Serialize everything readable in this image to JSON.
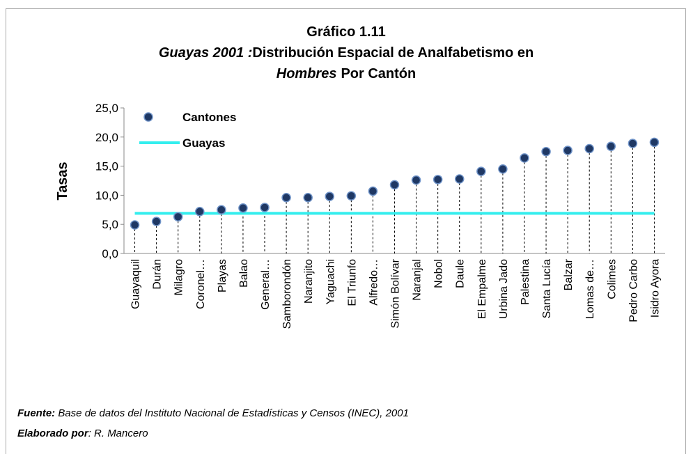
{
  "chart_data": {
    "type": "dot-drop",
    "title": "Gráfico  1.11",
    "subtitle_parts": [
      "Guayas 2001 :",
      "Distribución  Espacial de Analfabetismo en",
      "Hombres",
      "Por Cantón"
    ],
    "y_label": "Tasas",
    "categories": [
      "Guayaquil",
      "Durán",
      "Milagro",
      "Coronel…",
      "Playas",
      "Balao",
      "General…",
      "Samborondón",
      "Naranjito",
      "Yaguachi",
      "El Triunfo",
      "Alfredo…",
      "Simón Bolívar",
      "Naranjal",
      "Nobol",
      "Daule",
      "El Empalme",
      "Urbina Jado",
      "Palestina",
      "Santa Lucía",
      "Balzar",
      "Lomas de…",
      "Colimes",
      "Pedro Carbo",
      "Isidro Ayora"
    ],
    "series": [
      {
        "name": "Cantones",
        "color": "#1f3864",
        "values": [
          4.9,
          5.5,
          6.3,
          7.2,
          7.5,
          7.8,
          7.9,
          9.6,
          9.6,
          9.8,
          9.9,
          10.7,
          11.8,
          12.6,
          12.7,
          12.8,
          14.1,
          14.5,
          16.4,
          17.5,
          17.7,
          18.0,
          18.4,
          18.9,
          19.1
        ]
      },
      {
        "name": "Guayas",
        "color": "#33eeee",
        "values": [
          6.9,
          6.9,
          6.9,
          6.9,
          6.9,
          6.9,
          6.9,
          6.9,
          6.9,
          6.9,
          6.9,
          6.9,
          6.9,
          6.9,
          6.9,
          6.9,
          6.9,
          6.9,
          6.9,
          6.9,
          6.9,
          6.9,
          6.9,
          6.9,
          6.9
        ]
      }
    ],
    "ylim": [
      0,
      25
    ],
    "yticks": [
      {
        "value": 0,
        "label": "0,0"
      },
      {
        "value": 5,
        "label": "5,0"
      },
      {
        "value": 10,
        "label": "10,0"
      },
      {
        "value": 15,
        "label": "15,0"
      },
      {
        "value": 20,
        "label": "20,0"
      },
      {
        "value": 25,
        "label": "25,0"
      }
    ],
    "legend": "top-left",
    "notes": [
      {
        "label": "Fuente:",
        "text": " Base de datos del Instituto Nacional de Estadísticas y Censos  (INEC), 2001"
      },
      {
        "label": "Elaborado por",
        "text": ": R. Mancero"
      }
    ]
  }
}
